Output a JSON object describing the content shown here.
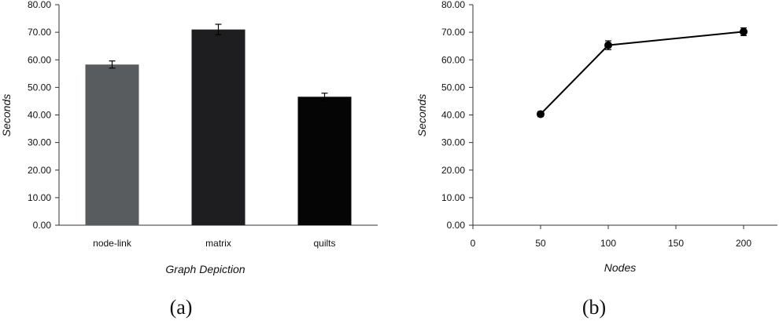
{
  "chart_data": [
    {
      "type": "bar",
      "categories": [
        "node-link",
        "matrix",
        "quilts"
      ],
      "values": [
        58.3,
        71.0,
        46.6
      ],
      "errors": [
        1.3,
        1.9,
        1.3
      ],
      "colors": [
        "#595c5e",
        "#1e1e20",
        "#050505"
      ],
      "ylabel": "Seconds",
      "xlabel": "Graph Depiction",
      "ylim": [
        0,
        80
      ],
      "yticks": [
        "0.00",
        "10.00",
        "20.00",
        "30.00",
        "40.00",
        "50.00",
        "60.00",
        "70.00",
        "80.00"
      ],
      "grid": false,
      "caption": "(a)"
    },
    {
      "type": "line",
      "x": [
        50,
        100,
        200
      ],
      "y": [
        40.3,
        65.3,
        70.2
      ],
      "errors": [
        0.9,
        1.6,
        1.4
      ],
      "color": "#000000",
      "ylabel": "Seconds",
      "xlabel": "Nodes",
      "xlim": [
        0,
        225
      ],
      "ylim": [
        0,
        80
      ],
      "xticks": [
        "0",
        "50",
        "100",
        "150",
        "200"
      ],
      "yticks": [
        "0.00",
        "10.00",
        "20.00",
        "30.00",
        "40.00",
        "50.00",
        "60.00",
        "70.00",
        "80.00"
      ],
      "grid": false,
      "caption": "(b)"
    }
  ]
}
